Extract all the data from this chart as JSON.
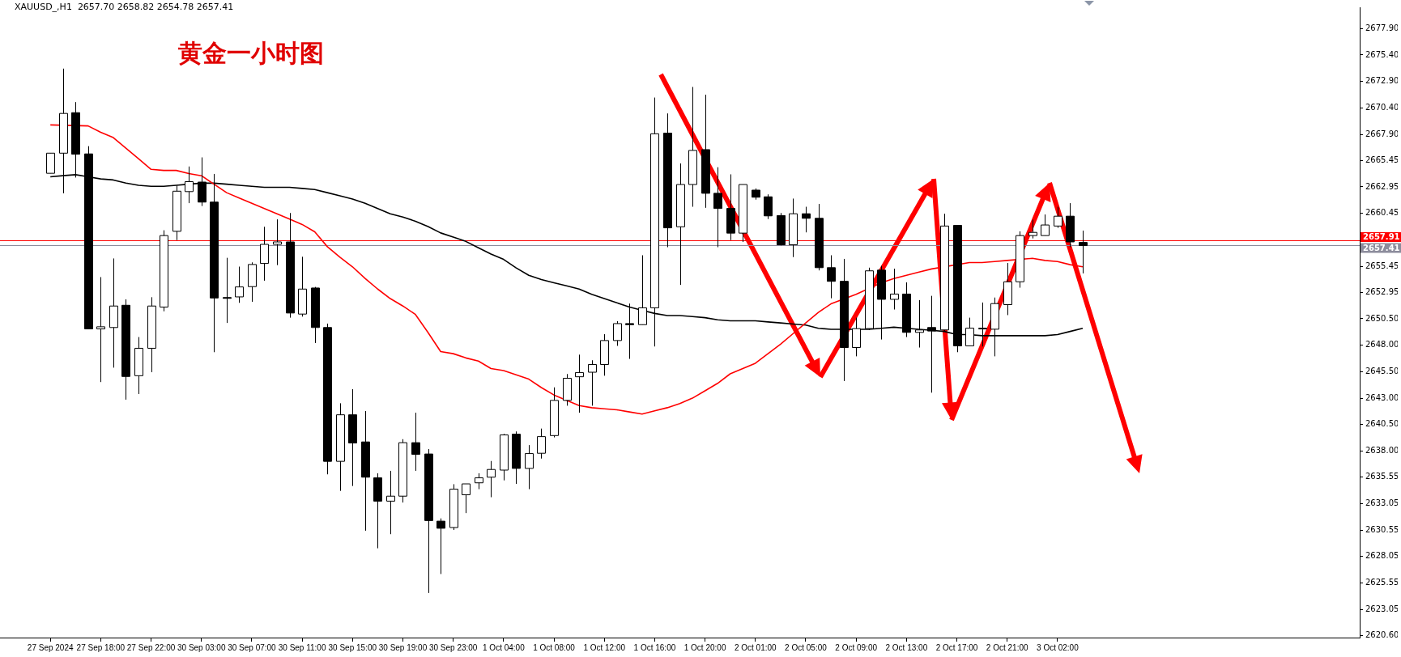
{
  "chart_data": {
    "type": "candlestick",
    "title": "XAUUSD_,H1  2657.70 2658.82 2654.78 2657.41",
    "annotations": [
      "黄金一小时图"
    ],
    "categories": [
      "27 Sep 2024",
      null,
      null,
      null,
      "27 Sep 18:00",
      null,
      null,
      null,
      "27 Sep 22:00",
      null,
      null,
      null,
      "30 Sep 03:00",
      null,
      null,
      null,
      "30 Sep 07:00",
      null,
      null,
      null,
      "30 Sep 11:00",
      null,
      null,
      null,
      "30 Sep 15:00",
      null,
      null,
      null,
      "30 Sep 19:00",
      null,
      null,
      null,
      "30 Sep 23:00",
      null,
      null,
      null,
      "1 Oct 04:00",
      null,
      null,
      null,
      "1 Oct 08:00",
      null,
      null,
      null,
      "1 Oct 12:00",
      null,
      null,
      null,
      "1 Oct 16:00",
      null,
      null,
      null,
      "1 Oct 20:00",
      null,
      null,
      null,
      "2 Oct 01:00",
      null,
      null,
      null,
      "2 Oct 05:00",
      null,
      null,
      null,
      "2 Oct 09:00",
      null,
      null,
      null,
      "2 Oct 13:00",
      null,
      null,
      null,
      "2 Oct 17:00",
      null,
      null,
      null,
      "2 Oct 21:00",
      null,
      null,
      null,
      "3 Oct 02:00",
      null,
      null
    ],
    "series": [
      {
        "type": "line",
        "color": "#ff0000",
        "values": [
          2668.8,
          null,
          null,
          2668.7,
          2668.1,
          2667.6,
          2666.6,
          2665.6,
          2664.6,
          2664.5,
          2664.5,
          2664.2,
          2664.0,
          2663.2,
          2662.4,
          2661.9,
          2661.4,
          2660.9,
          2660.4,
          2659.9,
          2659.4,
          2658.7,
          2657.3,
          2656.3,
          2655.4,
          2654.3,
          2653.3,
          2652.4,
          2651.7,
          2650.9,
          2649.2,
          2647.4,
          2647.2,
          2646.8,
          2646.5,
          2645.8,
          2645.6,
          2645.2,
          2644.8,
          2644.0,
          2643.3,
          2642.8,
          2642.3,
          2642.1,
          2642.0,
          2641.9,
          2641.7,
          2641.5,
          2641.8,
          2642.1,
          2642.5,
          2643.0,
          2643.7,
          2644.4,
          2645.3,
          2645.8,
          2646.3,
          2647.2,
          2648.1,
          2649.1,
          2650.1,
          2651.1,
          2651.9,
          null,
          2652.8,
          null,
          2653.9,
          2654.3,
          2654.6,
          2654.9,
          2655.2,
          null,
          null,
          2655.8,
          2655.8,
          2655.9,
          2656.0,
          null,
          2656.2,
          2656.0,
          2655.9,
          2655.6,
          2655.4
        ]
      },
      {
        "type": "line",
        "color": "#000000",
        "values": [
          2663.9,
          2664.0,
          2664.1,
          2663.9,
          2663.7,
          2663.6,
          2663.3,
          2663.1,
          2663.0,
          2663.0,
          2663.1,
          2663.2,
          2663.3,
          2663.3,
          2663.2,
          2663.1,
          2663.0,
          2662.9,
          2662.9,
          2662.9,
          2662.8,
          2662.7,
          2662.4,
          2662.1,
          2661.8,
          2661.4,
          2660.9,
          2660.4,
          2660.1,
          2659.7,
          2659.2,
          2658.6,
          2658.2,
          2657.8,
          2657.2,
          2656.6,
          2656.1,
          2655.3,
          2654.6,
          2654.2,
          2653.9,
          2653.6,
          2653.3,
          2652.8,
          2652.4,
          2652.0,
          2651.6,
          2651.3,
          2651.0,
          2650.8,
          2650.8,
          2650.7,
          2650.6,
          2650.4,
          2650.3,
          2650.3,
          2650.3,
          2650.2,
          2650.1,
          2650.0,
          2649.9,
          2649.6,
          2649.5,
          2649.5,
          2649.5,
          2649.5,
          2649.6,
          2649.7,
          2649.6,
          2649.5,
          2649.4,
          2649.3,
          2649.0,
          2649.0,
          2648.9,
          2648.9,
          2648.9,
          2648.9,
          2648.9,
          2648.9,
          2649.0,
          2649.3,
          2649.6
        ]
      },
      {
        "color": "#000000",
        "colors": [
          "#ffffff",
          "#ffffff",
          "#000000",
          "#000000",
          "#ffffff",
          "#ffffff",
          "#000000",
          "#ffffff",
          "#ffffff",
          "#ffffff",
          "#ffffff",
          "#ffffff",
          "#000000",
          "#000000",
          "#000000",
          "#ffffff",
          "#ffffff",
          "#ffffff",
          "#ffffff",
          "#000000",
          "#ffffff",
          "#000000",
          "#000000",
          "#ffffff",
          "#000000",
          "#000000",
          "#000000",
          "#ffffff",
          "#ffffff",
          "#000000",
          "#000000",
          "#000000",
          "#ffffff",
          "#ffffff",
          "#ffffff",
          "#ffffff",
          "#ffffff",
          "#000000",
          "#ffffff",
          "#ffffff",
          "#ffffff",
          "#ffffff",
          "#ffffff",
          "#ffffff",
          "#ffffff",
          "#ffffff",
          "#000000",
          "#ffffff",
          "#ffffff",
          "#000000",
          "#ffffff",
          "#ffffff",
          "#000000",
          "#000000",
          "#000000",
          "#ffffff",
          "#000000",
          "#000000",
          "#000000",
          "#ffffff",
          "#000000",
          "#000000",
          "#000000",
          "#000000",
          "#ffffff",
          "#ffffff",
          "#000000",
          "#ffffff",
          "#000000",
          "#ffffff",
          "#000000",
          "#ffffff",
          "#000000",
          "#ffffff",
          "#ffffff",
          "#ffffff",
          "#ffffff",
          "#ffffff",
          "#ffffff",
          "#ffffff",
          "#ffffff",
          "#000000",
          "#000000"
        ],
        "ohlc": [
          [
            2664.23,
            2666.13,
            2664.23,
            2666.13
          ],
          [
            2666.13,
            2674.11,
            2662.34,
            2669.88
          ],
          [
            2669.95,
            2670.95,
            2663.83,
            2666.03
          ],
          [
            2666.06,
            2666.79,
            2649.5,
            2649.54
          ],
          [
            2649.54,
            2654.43,
            2644.52,
            2649.74
          ],
          [
            2649.67,
            2656.19,
            2645.88,
            2651.7
          ],
          [
            2651.77,
            2652.33,
            2642.86,
            2645.05
          ],
          [
            2645.12,
            2648.77,
            2643.39,
            2647.71
          ],
          [
            2647.71,
            2652.53,
            2645.45,
            2651.7
          ],
          [
            2651.6,
            2658.85,
            2651.2,
            2658.35
          ],
          [
            2658.75,
            2663.07,
            2657.92,
            2662.54
          ],
          [
            2662.5,
            2664.87,
            2661.41,
            2663.44
          ],
          [
            2663.4,
            2665.73,
            2661.14,
            2661.51
          ],
          [
            2661.51,
            2664.17,
            2647.34,
            2652.46
          ],
          [
            2652.5,
            2656.25,
            2650.1,
            2652.46
          ],
          [
            2652.56,
            2655.42,
            2652.0,
            2653.5
          ],
          [
            2653.53,
            2655.82,
            2652.1,
            2655.62
          ],
          [
            2655.72,
            2659.18,
            2654.09,
            2657.52
          ],
          [
            2657.52,
            2659.88,
            2655.56,
            2657.75
          ],
          [
            2657.75,
            2660.48,
            2650.6,
            2651.04
          ],
          [
            2650.94,
            2656.35,
            2650.7,
            2653.3
          ],
          [
            2653.4,
            2653.5,
            2648.21,
            2649.67
          ],
          [
            2649.67,
            2650.04,
            2635.81,
            2637.04
          ],
          [
            2637.04,
            2642.52,
            2634.25,
            2641.43
          ],
          [
            2641.43,
            2643.85,
            2634.71,
            2638.77
          ],
          [
            2638.87,
            2641.79,
            2630.49,
            2635.54
          ],
          [
            2635.48,
            2635.91,
            2628.83,
            2633.28
          ],
          [
            2633.28,
            2636.14,
            2630.16,
            2633.75
          ],
          [
            2633.75,
            2639.13,
            2633.15,
            2638.8
          ],
          [
            2638.8,
            2641.63,
            2636.14,
            2637.7
          ],
          [
            2637.73,
            2638.2,
            2624.61,
            2631.45
          ],
          [
            2631.39,
            2631.65,
            2626.4,
            2630.72
          ],
          [
            2630.79,
            2634.88,
            2630.56,
            2634.41
          ],
          [
            2633.88,
            2634.91,
            2632.15,
            2634.91
          ],
          [
            2635.01,
            2635.91,
            2634.41,
            2635.48
          ],
          [
            2635.54,
            2637.07,
            2633.65,
            2636.27
          ],
          [
            2636.21,
            2639.63,
            2635.24,
            2639.53
          ],
          [
            2639.6,
            2639.86,
            2634.91,
            2636.37
          ],
          [
            2636.37,
            2638.57,
            2634.41,
            2637.77
          ],
          [
            2637.8,
            2640.13,
            2637.3,
            2639.37
          ],
          [
            2639.47,
            2644.02,
            2639.3,
            2642.79
          ],
          [
            2642.79,
            2645.28,
            2642.29,
            2644.88
          ],
          [
            2645.02,
            2647.11,
            2641.63,
            2645.42
          ],
          [
            2645.45,
            2646.58,
            2642.29,
            2646.18
          ],
          [
            2646.18,
            2649.04,
            2645.12,
            2648.44
          ],
          [
            2648.44,
            2650.27,
            2647.94,
            2650.04
          ],
          [
            2650.04,
            2651.93,
            2646.71,
            2649.94
          ],
          [
            2649.94,
            2656.49,
            2649.94,
            2651.53
          ],
          [
            2651.53,
            2671.38,
            2647.88,
            2667.96
          ],
          [
            2668.02,
            2669.88,
            2657.25,
            2659.08
          ],
          [
            2659.18,
            2665.16,
            2653.69,
            2663.17
          ],
          [
            2663.17,
            2672.38,
            2661.07,
            2666.39
          ],
          [
            2666.46,
            2671.65,
            2660.97,
            2662.34
          ],
          [
            2662.34,
            2664.8,
            2657.25,
            2660.91
          ],
          [
            2660.91,
            2664.13,
            2657.92,
            2658.58
          ],
          [
            2658.58,
            2663.17,
            2657.75,
            2663.17
          ],
          [
            2662.64,
            2662.8,
            2661.74,
            2661.97
          ],
          [
            2662.01,
            2662.24,
            2659.91,
            2660.21
          ],
          [
            2660.24,
            2660.48,
            2657.42,
            2657.48
          ],
          [
            2657.48,
            2661.84,
            2656.32,
            2660.41
          ],
          [
            2660.41,
            2661.07,
            2658.65,
            2659.98
          ],
          [
            2659.98,
            2661.34,
            2655.06,
            2655.32
          ],
          [
            2655.32,
            2656.49,
            2652.43,
            2654.03
          ],
          [
            2654.03,
            2656.15,
            2644.62,
            2647.78
          ],
          [
            2647.78,
            2650.6,
            2646.95,
            2649.57
          ],
          [
            2649.57,
            2655.32,
            2649.44,
            2655.02
          ],
          [
            2655.09,
            2655.49,
            2648.54,
            2652.33
          ],
          [
            2652.33,
            2655.22,
            2651.37,
            2652.83
          ],
          [
            2652.83,
            2653.93,
            2648.77,
            2649.21
          ],
          [
            2649.21,
            2652.26,
            2647.78,
            2649.44
          ],
          [
            2649.67,
            2652.66,
            2643.52,
            2649.34
          ],
          [
            2649.44,
            2660.41,
            2649.27,
            2659.25
          ],
          [
            2659.31,
            2659.31,
            2647.34,
            2647.94
          ],
          [
            2647.94,
            2650.6,
            2647.94,
            2649.61
          ],
          [
            2649.57,
            2652.03,
            2647.88,
            2649.61
          ],
          [
            2649.51,
            2652.5,
            2646.95,
            2651.93
          ],
          [
            2651.83,
            2655.76,
            2650.84,
            2653.99
          ],
          [
            2653.99,
            2658.75,
            2653.43,
            2658.35
          ],
          [
            2658.35,
            2659.84,
            2658.08,
            2658.65
          ],
          [
            2658.35,
            2660.34,
            2658.35,
            2659.35
          ],
          [
            2659.25,
            2661.07,
            2659.08,
            2660.18
          ],
          [
            2660.18,
            2661.41,
            2657.25,
            2657.75
          ],
          [
            2657.7,
            2658.82,
            2654.78,
            2657.41
          ]
        ]
      }
    ],
    "ylim": [
      2620.4,
      2679.9
    ],
    "yticks": [
      {
        "value": 2677.9,
        "label": "2677.90"
      },
      {
        "value": 2675.4,
        "label": "2675.40"
      },
      {
        "value": 2672.9,
        "label": "2672.90"
      },
      {
        "value": 2670.4,
        "label": "2670.40"
      },
      {
        "value": 2667.9,
        "label": "2667.90"
      },
      {
        "value": 2665.45,
        "label": "2665.45"
      },
      {
        "value": 2662.95,
        "label": "2662.95"
      },
      {
        "value": 2660.45,
        "label": "2660.45"
      },
      {
        "value": 2655.45,
        "label": "2655.45"
      },
      {
        "value": 2652.95,
        "label": "2652.95"
      },
      {
        "value": 2650.5,
        "label": "2650.50"
      },
      {
        "value": 2648,
        "label": "2648.00"
      },
      {
        "value": 2645.5,
        "label": "2645.50"
      },
      {
        "value": 2643,
        "label": "2643.00"
      },
      {
        "value": 2640.5,
        "label": "2640.50"
      },
      {
        "value": 2638,
        "label": "2638.00"
      },
      {
        "value": 2635.55,
        "label": "2635.55"
      },
      {
        "value": 2633.05,
        "label": "2633.05"
      },
      {
        "value": 2630.55,
        "label": "2630.55"
      },
      {
        "value": 2628.05,
        "label": "2628.05"
      },
      {
        "value": 2625.55,
        "label": "2625.55"
      },
      {
        "value": 2623.05,
        "label": "2623.05"
      },
      {
        "value": 2620.6,
        "label": "2620.60"
      }
    ],
    "ref_lines": [
      {
        "axis": "y",
        "value": 2657.91,
        "label": "2657.91",
        "color": "#ff0000"
      },
      {
        "axis": "y",
        "value": 2657.41,
        "label": "2657.41",
        "color": "#8c8c9c"
      }
    ],
    "grid": false,
    "legend": false
  }
}
